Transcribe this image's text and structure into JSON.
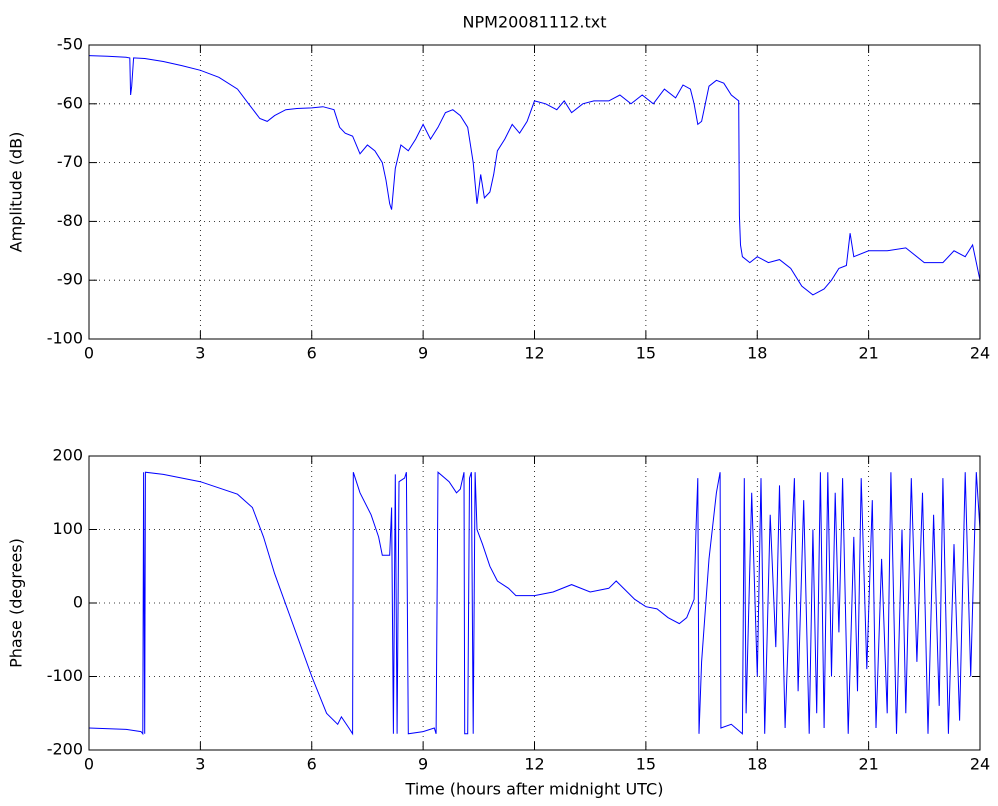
{
  "chart_data": [
    {
      "type": "line",
      "title": "NPM20081112.txt",
      "ylabel": "Amplitude (dB)",
      "color": "#0000ff",
      "grid": true,
      "xlim": [
        0,
        24
      ],
      "xticks": [
        0,
        3,
        6,
        9,
        12,
        15,
        18,
        21,
        24
      ],
      "ylim": [
        -100,
        -50
      ],
      "yticks": [
        -100,
        -90,
        -80,
        -70,
        -60,
        -50
      ],
      "x": [
        0,
        0.5,
        1.0,
        1.1,
        1.12,
        1.15,
        1.2,
        1.5,
        2.0,
        2.5,
        3.0,
        3.5,
        4.0,
        4.3,
        4.6,
        4.8,
        5.0,
        5.3,
        5.6,
        6.0,
        6.3,
        6.6,
        6.75,
        6.9,
        7.1,
        7.3,
        7.5,
        7.7,
        7.9,
        8.0,
        8.1,
        8.15,
        8.25,
        8.4,
        8.6,
        8.8,
        9.0,
        9.2,
        9.4,
        9.6,
        9.8,
        10.0,
        10.2,
        10.35,
        10.45,
        10.55,
        10.65,
        10.8,
        10.9,
        11.0,
        11.2,
        11.4,
        11.6,
        11.8,
        12.0,
        12.3,
        12.6,
        12.8,
        13.0,
        13.3,
        13.6,
        14.0,
        14.3,
        14.6,
        14.9,
        15.2,
        15.5,
        15.8,
        16.0,
        16.2,
        16.3,
        16.4,
        16.5,
        16.7,
        16.9,
        17.1,
        17.3,
        17.5,
        17.52,
        17.55,
        17.6,
        17.8,
        18.0,
        18.3,
        18.6,
        18.9,
        19.2,
        19.5,
        19.8,
        20.0,
        20.2,
        20.4,
        20.5,
        20.6,
        21.0,
        21.5,
        22.0,
        22.5,
        23.0,
        23.3,
        23.6,
        23.8,
        24.0
      ],
      "values": [
        -51.8,
        -51.9,
        -52.1,
        -52.2,
        -58.5,
        -57,
        -52.2,
        -52.3,
        -52.8,
        -53.5,
        -54.3,
        -55.5,
        -57.5,
        -60,
        -62.5,
        -63,
        -62,
        -61,
        -60.8,
        -60.7,
        -60.5,
        -61,
        -64,
        -65,
        -65.5,
        -68.5,
        -67,
        -68,
        -70,
        -73,
        -77,
        -78,
        -71,
        -67,
        -68,
        -66,
        -63.5,
        -66,
        -64,
        -61.5,
        -61,
        -62,
        -64,
        -70,
        -77,
        -72,
        -76,
        -75,
        -72,
        -68,
        -66,
        -63.5,
        -65,
        -63,
        -59.5,
        -60,
        -61,
        -59.5,
        -61.5,
        -60,
        -59.5,
        -59.5,
        -58.5,
        -60,
        -58.5,
        -60,
        -57.5,
        -59,
        -56.8,
        -57.5,
        -60,
        -63.5,
        -63,
        -57,
        -56,
        -56.5,
        -58.5,
        -59.5,
        -79,
        -84,
        -86,
        -87,
        -86,
        -87,
        -86.5,
        -88,
        -91,
        -92.5,
        -91.5,
        -90,
        -88,
        -87.5,
        -82,
        -86,
        -85,
        -85,
        -84.5,
        -87,
        -87,
        -85,
        -86,
        -84,
        -90
      ]
    },
    {
      "type": "line",
      "xlabel": "Time (hours after midnight UTC)",
      "ylabel": "Phase (degrees)",
      "color": "#0000ff",
      "grid": true,
      "xlim": [
        0,
        24
      ],
      "xticks": [
        0,
        3,
        6,
        9,
        12,
        15,
        18,
        21,
        24
      ],
      "ylim": [
        -200,
        200
      ],
      "yticks": [
        -200,
        -100,
        0,
        100,
        200
      ],
      "x": [
        0,
        1.0,
        1.4,
        1.45,
        1.47,
        1.5,
        1.52,
        2,
        3,
        4,
        4.4,
        4.7,
        5.0,
        5.5,
        6.0,
        6.4,
        6.7,
        6.8,
        7.0,
        7.1,
        7.12,
        7.3,
        7.6,
        7.8,
        7.9,
        8.1,
        8.15,
        8.2,
        8.25,
        8.3,
        8.35,
        8.5,
        8.55,
        8.6,
        9.0,
        9.3,
        9.35,
        9.4,
        9.7,
        9.9,
        10.0,
        10.1,
        10.12,
        10.2,
        10.25,
        10.3,
        10.35,
        10.4,
        10.45,
        10.6,
        10.8,
        11.0,
        11.3,
        11.5,
        12.0,
        12.5,
        13.0,
        13.5,
        14.0,
        14.2,
        14.5,
        14.7,
        15.0,
        15.3,
        15.6,
        15.9,
        16.1,
        16.3,
        16.35,
        16.4,
        16.43,
        16.5,
        16.7,
        16.9,
        17.0,
        17.02,
        17.3,
        17.6,
        17.65,
        17.7,
        17.85,
        18.0,
        18.1,
        18.2,
        18.35,
        18.5,
        18.6,
        18.75,
        18.9,
        19.0,
        19.1,
        19.25,
        19.4,
        19.5,
        19.6,
        19.7,
        19.8,
        19.9,
        20.0,
        20.1,
        20.2,
        20.3,
        20.45,
        20.6,
        20.7,
        20.8,
        20.95,
        21.1,
        21.2,
        21.35,
        21.5,
        21.6,
        21.75,
        21.9,
        22.0,
        22.15,
        22.3,
        22.45,
        22.6,
        22.75,
        22.9,
        23.0,
        23.15,
        23.3,
        23.45,
        23.6,
        23.75,
        23.9,
        24.0
      ],
      "values": [
        -170,
        -172,
        -175,
        -178,
        178,
        -178,
        178,
        175,
        165,
        148,
        130,
        90,
        40,
        -30,
        -100,
        -150,
        -165,
        -155,
        -170,
        -178,
        178,
        150,
        120,
        90,
        65,
        65,
        130,
        -178,
        175,
        -178,
        165,
        170,
        178,
        -178,
        -175,
        -170,
        -178,
        178,
        165,
        150,
        155,
        178,
        -178,
        -178,
        170,
        178,
        -178,
        178,
        100,
        80,
        50,
        30,
        20,
        10,
        10,
        15,
        25,
        15,
        20,
        30,
        15,
        5,
        -5,
        -8,
        -20,
        -28,
        -20,
        5,
        100,
        170,
        -178,
        -80,
        60,
        150,
        178,
        -170,
        -165,
        -178,
        170,
        -150,
        150,
        -100,
        170,
        -178,
        120,
        -60,
        160,
        -170,
        50,
        170,
        -120,
        140,
        -178,
        100,
        -150,
        178,
        -170,
        178,
        -100,
        150,
        -40,
        170,
        -178,
        90,
        -120,
        170,
        -90,
        140,
        -170,
        60,
        -150,
        178,
        -178,
        100,
        -150,
        170,
        -80,
        150,
        -178,
        120,
        -140,
        170,
        -178,
        80,
        -160,
        178,
        -100,
        178,
        100
      ]
    }
  ]
}
